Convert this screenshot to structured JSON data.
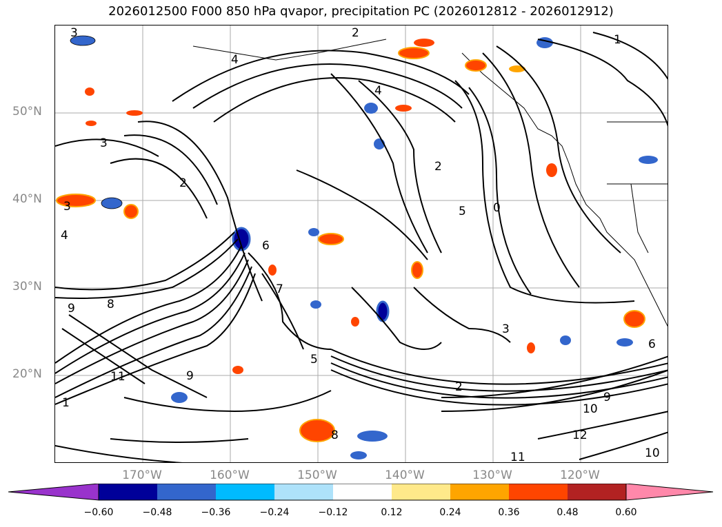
{
  "title": "2026012500 F000 850 hPa qvapor, precipitation PC (2026012812 - 2026012912)",
  "lat_labels": [
    "50°N",
    "40°N",
    "30°N",
    "20°N"
  ],
  "lon_labels": [
    "170°W",
    "160°W",
    "150°W",
    "140°W",
    "130°W",
    "120°W"
  ],
  "colorbar": {
    "ticks": [
      "−0.60",
      "−0.48",
      "−0.36",
      "−0.24",
      "−0.12",
      "0.12",
      "0.24",
      "0.36",
      "0.48",
      "0.60"
    ],
    "colors": [
      "#9933cc",
      "#000099",
      "#3366cc",
      "#00bbff",
      "#aee2fa",
      "#ffffff",
      "#ffe98a",
      "#ffa500",
      "#ff4500",
      "#b22222",
      "#ff88aa"
    ]
  },
  "contour_labels": [
    "3",
    "2",
    "4",
    "1",
    "3",
    "4",
    "2",
    "3",
    "8",
    "9",
    "11",
    "6",
    "5",
    "2",
    "9",
    "10",
    "12",
    "11",
    "10",
    "6",
    "3",
    "1",
    "8",
    "9",
    "0",
    "5",
    "2",
    "4",
    "7"
  ]
}
